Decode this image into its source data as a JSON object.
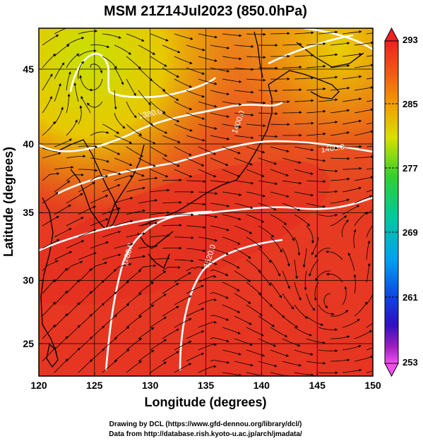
{
  "title": "MSM 21Z14Jul2023 (850.0hPa)",
  "x_axis": {
    "label": "Longitude (degrees)",
    "ticks": [
      "120",
      "125",
      "130",
      "135",
      "140",
      "145",
      "150"
    ]
  },
  "y_axis": {
    "label": "Latitude  (degrees)",
    "ticks": [
      "25",
      "30",
      "35",
      "40",
      "45"
    ]
  },
  "colorbar": {
    "ticks": [
      "293",
      "285",
      "277",
      "269",
      "261",
      "253"
    ],
    "colors": [
      "#f02020",
      "#f05a14",
      "#f0a000",
      "#d8e000",
      "#30d030",
      "#00c8a0",
      "#00a0f0",
      "#1040e0",
      "#3010c0",
      "#a020c0",
      "#f050f0"
    ]
  },
  "contour_labels": [
    "1380.0",
    "1400.0",
    "1460.0",
    "1480.0",
    "1500.0",
    "1520.0"
  ],
  "footer": {
    "line1": "Drawing by DCL (https://www.gfd-dennou.org/library/dcl/)",
    "line2": "Data from http://database.rish.kyoto-u.ac.jp/arch/jmadata/"
  }
}
